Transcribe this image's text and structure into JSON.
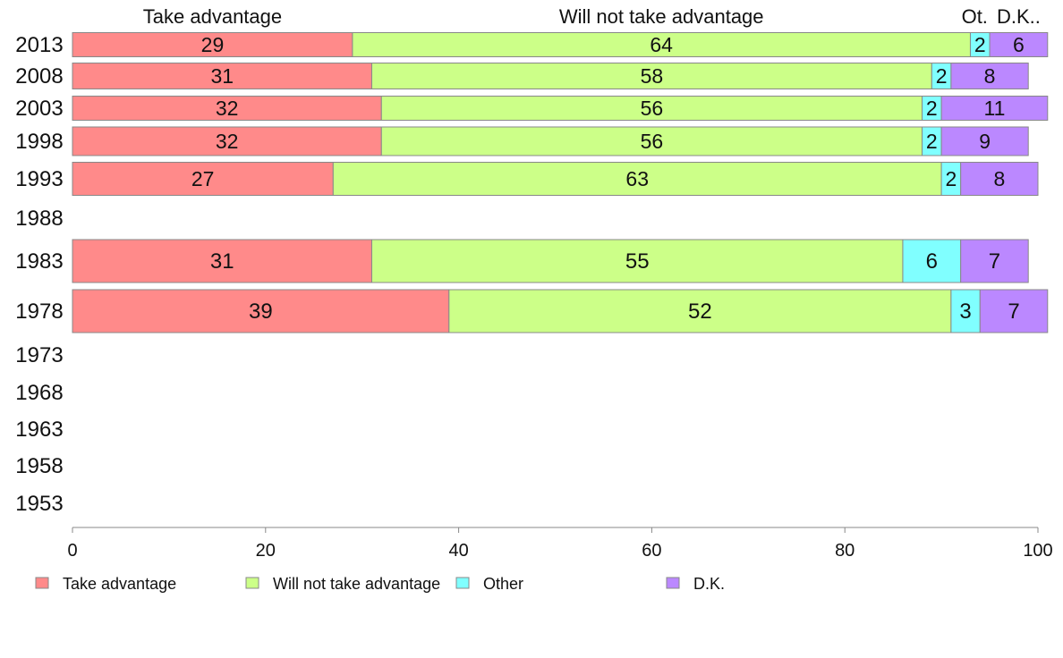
{
  "chart_data": {
    "type": "bar",
    "orientation": "horizontal",
    "stacked": true,
    "column_headers": [
      "Take advantage",
      "Will not take advantage",
      "Ot.",
      "D.K.."
    ],
    "categories": [
      "2013",
      "2008",
      "2003",
      "1998",
      "1993",
      "1988",
      "1983",
      "1978",
      "1973",
      "1968",
      "1963",
      "1958",
      "1953"
    ],
    "series": [
      {
        "name": "Take advantage",
        "color": "#ff8a8a",
        "values": [
          29,
          31,
          32,
          32,
          27,
          null,
          31,
          39,
          null,
          null,
          null,
          null,
          null
        ]
      },
      {
        "name": "Will not take advantage",
        "color": "#ccff88",
        "values": [
          64,
          58,
          56,
          56,
          63,
          null,
          55,
          52,
          null,
          null,
          null,
          null,
          null
        ]
      },
      {
        "name": "Other",
        "color": "#80ffff",
        "values": [
          2,
          2,
          2,
          2,
          2,
          null,
          6,
          3,
          null,
          null,
          null,
          null,
          null
        ]
      },
      {
        "name": "D.K.",
        "color": "#bb88ff",
        "values": [
          6,
          8,
          11,
          9,
          8,
          null,
          7,
          7,
          null,
          null,
          null,
          null,
          null
        ]
      }
    ],
    "xlim": [
      0,
      100
    ],
    "xticks": [
      0,
      20,
      40,
      60,
      80,
      100
    ],
    "legend_position": "bottom",
    "grid": false
  }
}
